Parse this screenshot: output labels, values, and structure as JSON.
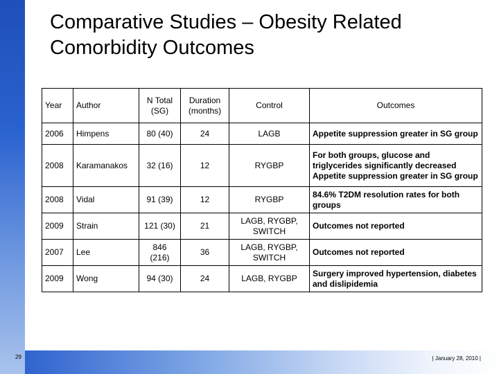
{
  "slide": {
    "title_line1": "Comparative Studies – Obesity Related",
    "title_line2": "Comorbidity Outcomes",
    "page_number": "29",
    "footer": "| January 28, 2010 |"
  },
  "table": {
    "headers": {
      "year": "Year",
      "author": "Author",
      "n_total": "N Total (SG)",
      "duration": "Duration (months)",
      "control": "Control",
      "outcomes": "Outcomes"
    },
    "rows": [
      {
        "year": "2006",
        "author": "Himpens",
        "n": "80 (40)",
        "duration": "24",
        "control": "LAGB",
        "outcome": "Appetite suppression greater in SG group"
      },
      {
        "year": "2008",
        "author": "Karamanakos",
        "n": "32 (16)",
        "duration": "12",
        "control": "RYGBP",
        "outcome": "For both groups, glucose and triglycerides significantly decreased Appetite suppression greater in SG group"
      },
      {
        "year": "2008",
        "author": "Vidal",
        "n": "91 (39)",
        "duration": "12",
        "control": "RYGBP",
        "outcome": "84.6% T2DM resolution rates for both groups"
      },
      {
        "year": "2009",
        "author": "Strain",
        "n": "121 (30)",
        "duration": "21",
        "control": "LAGB, RYGBP, SWITCH",
        "outcome": "Outcomes not reported"
      },
      {
        "year": "2007",
        "author": "Lee",
        "n": "846 (216)",
        "duration": "36",
        "control": "LAGB, RYGBP, SWITCH",
        "outcome": "Outcomes not reported"
      },
      {
        "year": "2009",
        "author": "Wong",
        "n": "94 (30)",
        "duration": "24",
        "control": "LAGB, RYGBP",
        "outcome": "Surgery improved hypertension, diabetes and dislipidemia"
      }
    ]
  }
}
